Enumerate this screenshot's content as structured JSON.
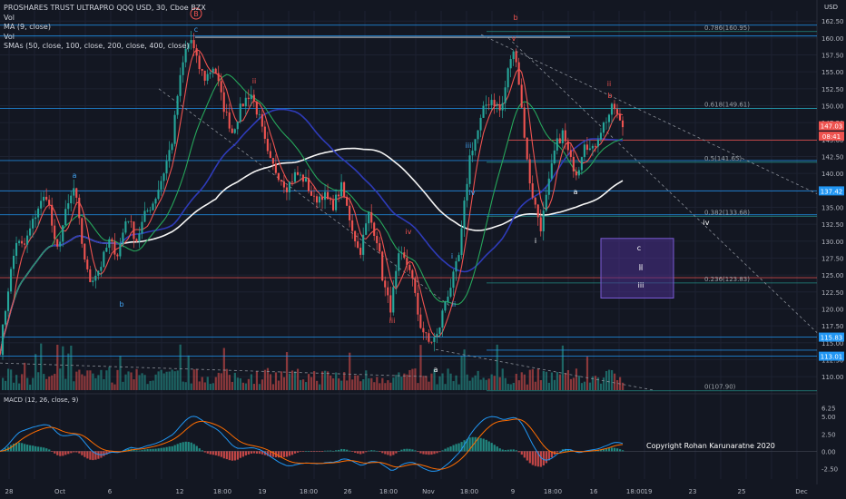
{
  "legend": {
    "symbol": "PROSHARES TRUST ULTRAPRO QQQ USD, 30, Cboe BZX",
    "vol1": "Vol",
    "ma": "MA (9, close)",
    "vol2": "Vol",
    "smas": "SMAs (50, close, 100, close, 200, close, 400, close)"
  },
  "currency": "USD",
  "macd_label": "MACD (12, 26, close, 9)",
  "copyright": "Copyright Rohan Karunaratne 2020",
  "badge": "B",
  "colors": {
    "background": "#131722",
    "up": "#26a69a",
    "down": "#ef5350",
    "ma9": "#ef5350",
    "sma50": "#26a65b",
    "sma100": "#2e3bb8",
    "sma200": "#f5f5f5",
    "fib": "#26a69a",
    "blue_line": "#2196f3",
    "box": "#5b3fa0"
  },
  "chart_data": {
    "type": "candlestick",
    "x_ticks": [
      "28",
      "Oct",
      "6",
      "12",
      "18:00",
      "19",
      "18:00",
      "26",
      "18:00",
      "Nov",
      "18:00",
      "9",
      "18:00",
      "16",
      "18:00",
      "19",
      "23",
      "25",
      "Dec"
    ],
    "y_ticks": [
      110.0,
      112.5,
      115.0,
      117.5,
      120.0,
      122.5,
      125.0,
      127.5,
      130.0,
      132.5,
      135.0,
      137.5,
      140.0,
      142.5,
      145.0,
      147.5,
      150.0,
      152.5,
      155.0,
      157.5,
      160.0,
      162.5
    ],
    "ylim": [
      108,
      164
    ],
    "price_tags": [
      {
        "value": 147.03,
        "label": "147.03",
        "color": "#ef5350"
      },
      {
        "value": 145.5,
        "label": "08:41",
        "color": "#ef5350"
      },
      {
        "value": 137.42,
        "label": "137.42",
        "color": "#2196f3"
      },
      {
        "value": 115.83,
        "label": "115.83",
        "color": "#2196f3"
      },
      {
        "value": 113.01,
        "label": "113.01",
        "color": "#2196f3"
      }
    ],
    "fib_levels": [
      {
        "label": "0.786(160.95)",
        "value": 160.95
      },
      {
        "label": "0.618(149.61)",
        "value": 149.61
      },
      {
        "label": "0.5(141.65)",
        "value": 141.65
      },
      {
        "label": "0.382(133.68)",
        "value": 133.68
      },
      {
        "label": "0.236(123.83)",
        "value": 123.83
      },
      {
        "label": "0(107.90)",
        "value": 107.9
      }
    ],
    "wave_labels": [
      {
        "text": "c",
        "color": "#42a5f5"
      },
      {
        "text": "a",
        "color": "#42a5f5"
      },
      {
        "text": "b",
        "color": "#42a5f5"
      },
      {
        "text": "ii",
        "color": "#ef5350"
      },
      {
        "text": "iii",
        "color": "#ef5350"
      },
      {
        "text": "iv",
        "color": "#ef5350"
      },
      {
        "text": "i",
        "color": "#42a5f5"
      },
      {
        "text": "ii",
        "color": "#42a5f5"
      },
      {
        "text": "iii",
        "color": "#42a5f5"
      },
      {
        "text": "iv",
        "color": "#42a5f5"
      },
      {
        "text": "a",
        "color": "#ffffff"
      },
      {
        "text": "b",
        "color": "#ef5350"
      },
      {
        "text": "v",
        "color": "#ef5350"
      },
      {
        "text": "i",
        "color": "#ffffff"
      },
      {
        "text": "ii",
        "color": "#ffffff"
      },
      {
        "text": "a",
        "color": "#ffffff"
      },
      {
        "text": "ii",
        "color": "#ef5350"
      },
      {
        "text": "b",
        "color": "#ef5350"
      },
      {
        "text": "iv",
        "color": "#ffffff"
      },
      {
        "text": "c",
        "color": "#ffffff"
      },
      {
        "text": "ii",
        "color": "#ffffff"
      },
      {
        "text": "iii",
        "color": "#ffffff"
      }
    ],
    "macd_ticks": [
      -2.5,
      0.0,
      2.5,
      5.0,
      6.25
    ],
    "macd_tick_labels": [
      "-2.50",
      "0.00",
      "2.50",
      "5.00",
      "6.25"
    ],
    "macd_ylim": [
      -4,
      7.5
    ],
    "anchors": [
      [
        0,
        114
      ],
      [
        10,
        124
      ],
      [
        18,
        130
      ],
      [
        26,
        129
      ],
      [
        34,
        132
      ],
      [
        42,
        135
      ],
      [
        52,
        137
      ],
      [
        62,
        128
      ],
      [
        72,
        134
      ],
      [
        82,
        138
      ],
      [
        90,
        130
      ],
      [
        98,
        124
      ],
      [
        110,
        126
      ],
      [
        120,
        130
      ],
      [
        130,
        128
      ],
      [
        140,
        134
      ],
      [
        150,
        130
      ],
      [
        160,
        134
      ],
      [
        170,
        136
      ],
      [
        180,
        140
      ],
      [
        190,
        145
      ],
      [
        196,
        152
      ],
      [
        204,
        158
      ],
      [
        210,
        160
      ],
      [
        218,
        156
      ],
      [
        226,
        154
      ],
      [
        236,
        156
      ],
      [
        246,
        150
      ],
      [
        256,
        146
      ],
      [
        266,
        150
      ],
      [
        276,
        152
      ],
      [
        286,
        148
      ],
      [
        296,
        142
      ],
      [
        306,
        140
      ],
      [
        316,
        138
      ],
      [
        326,
        140
      ],
      [
        336,
        139
      ],
      [
        346,
        136
      ],
      [
        356,
        137
      ],
      [
        366,
        135
      ],
      [
        376,
        138
      ],
      [
        386,
        133
      ],
      [
        396,
        128
      ],
      [
        406,
        134
      ],
      [
        416,
        130
      ],
      [
        422,
        124
      ],
      [
        430,
        120
      ],
      [
        440,
        128
      ],
      [
        452,
        126
      ],
      [
        462,
        118
      ],
      [
        472,
        115
      ],
      [
        482,
        116
      ],
      [
        490,
        121
      ],
      [
        498,
        124
      ],
      [
        506,
        128
      ],
      [
        512,
        136
      ],
      [
        518,
        143
      ],
      [
        526,
        146
      ],
      [
        534,
        150
      ],
      [
        542,
        151
      ],
      [
        552,
        149
      ],
      [
        562,
        157
      ],
      [
        568,
        158
      ],
      [
        576,
        148
      ],
      [
        582,
        140
      ],
      [
        588,
        136
      ],
      [
        596,
        132
      ],
      [
        604,
        138
      ],
      [
        612,
        144
      ],
      [
        620,
        146
      ],
      [
        628,
        142
      ],
      [
        636,
        140
      ],
      [
        644,
        145
      ],
      [
        652,
        143
      ],
      [
        660,
        146
      ],
      [
        668,
        148
      ],
      [
        676,
        150
      ],
      [
        684,
        147
      ]
    ]
  }
}
